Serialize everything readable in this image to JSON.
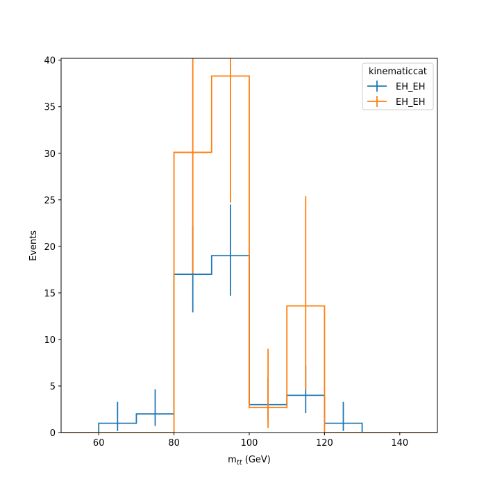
{
  "chart_data": {
    "type": "histogram-step",
    "xlabel": "m_tt (GeV)",
    "ylabel": "Events",
    "xlim": [
      50,
      150
    ],
    "ylim": [
      0,
      40.2
    ],
    "xticks": [
      60,
      80,
      100,
      120,
      140
    ],
    "yticks": [
      0,
      5,
      10,
      15,
      20,
      25,
      30,
      35,
      40
    ],
    "bin_edges": [
      50,
      60,
      70,
      80,
      90,
      100,
      110,
      120,
      130,
      140,
      150
    ],
    "legend": {
      "title": "kinematiccat",
      "position": "top-right"
    },
    "series": [
      {
        "name": "EH_EH",
        "color": "#1f77b4",
        "values": [
          0,
          1,
          2,
          17,
          19,
          3,
          4,
          1,
          0,
          0
        ],
        "err_low": [
          0,
          0.83,
          1.29,
          4.1,
          4.3,
          1.63,
          1.91,
          0.83,
          0,
          0
        ],
        "err_high": [
          0,
          2.3,
          2.64,
          5.2,
          5.5,
          2.88,
          3.16,
          2.3,
          0,
          0
        ]
      },
      {
        "name": "EH_EH",
        "color": "#ff7f0e",
        "values": [
          0,
          0,
          0,
          30.1,
          38.3,
          2.7,
          13.6,
          0,
          0,
          0
        ],
        "err_low": [
          0,
          0,
          0,
          13,
          13.6,
          2.2,
          9.0,
          0,
          0,
          0
        ],
        "err_high": [
          0,
          0,
          0,
          13,
          13.6,
          6.3,
          11.8,
          0,
          0,
          0
        ]
      }
    ]
  }
}
